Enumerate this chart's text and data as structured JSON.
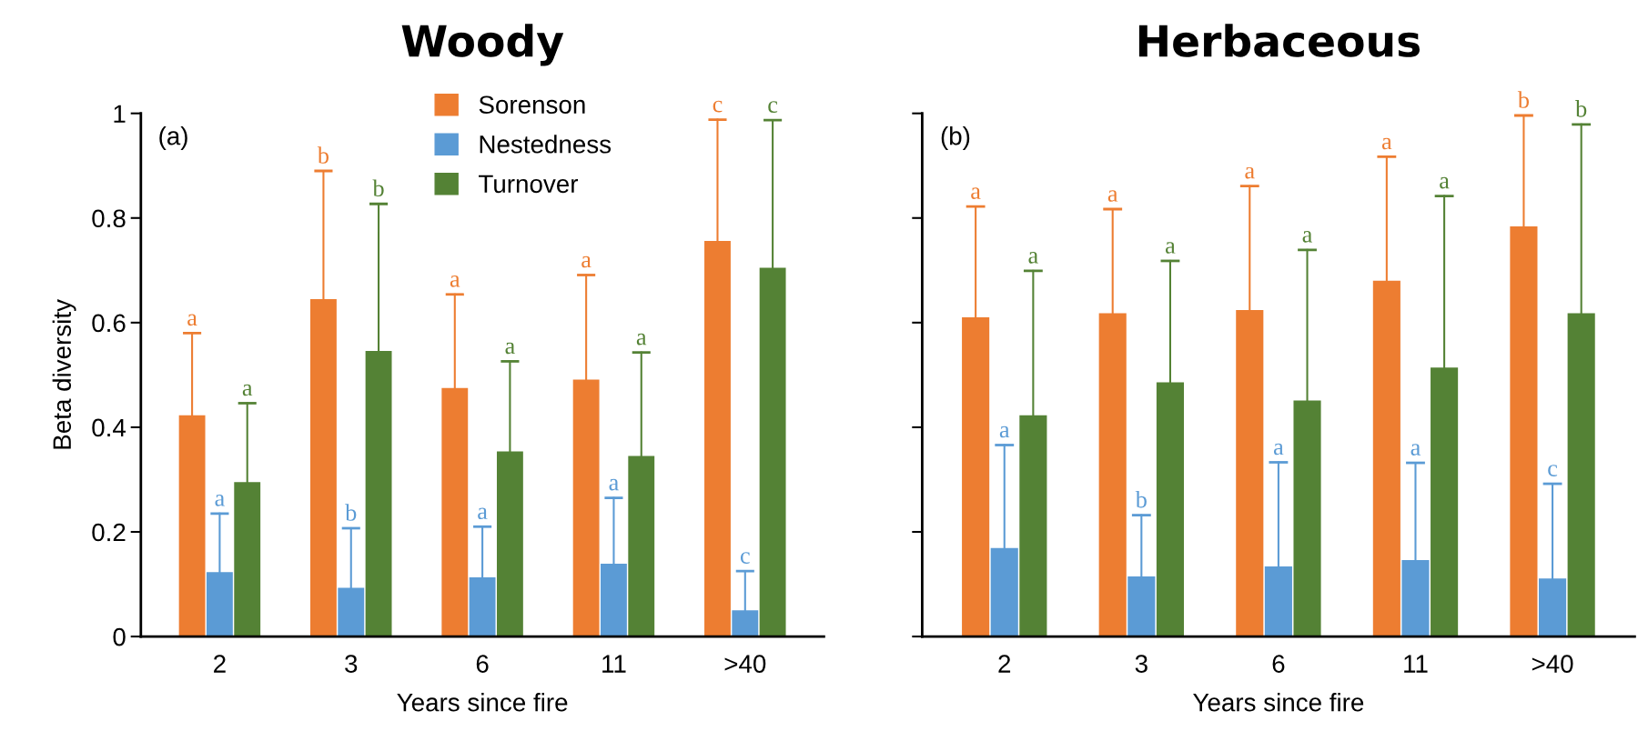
{
  "chart_data": [
    {
      "type": "bar",
      "title": "Woody",
      "xlabel": "Years since fire",
      "ylabel": "Beta diversity",
      "categories": [
        "2",
        "3",
        "6",
        "11",
        ">40"
      ],
      "ylim": [
        0,
        1
      ],
      "yticks": [
        0,
        0.2,
        0.4,
        0.6,
        0.8,
        1
      ],
      "grid": false,
      "legend": "top",
      "annotations": [
        "(a)",
        "a",
        "b",
        "a",
        "a",
        "c",
        "a",
        "b",
        "a",
        "a",
        "c",
        "a",
        "b",
        "a",
        "a",
        "c"
      ],
      "series": [
        {
          "name": "Sorenson",
          "color": "#ed7d31",
          "values": [
            0.423,
            0.645,
            0.475,
            0.491,
            0.756
          ],
          "errors": [
            [
              0.423,
              0.58
            ],
            [
              0.645,
              0.89
            ],
            [
              0.475,
              0.654
            ],
            [
              0.491,
              0.691
            ],
            [
              0.756,
              0.988
            ]
          ]
        },
        {
          "name": "Nestedness",
          "color": "#5b9bd5",
          "values": [
            0.123,
            0.093,
            0.113,
            0.139,
            0.05
          ],
          "errors": [
            [
              0.123,
              0.235
            ],
            [
              0.093,
              0.207
            ],
            [
              0.113,
              0.21
            ],
            [
              0.139,
              0.265
            ],
            [
              0.05,
              0.125
            ]
          ]
        },
        {
          "name": "Turnover",
          "color": "#548235",
          "values": [
            0.295,
            0.546,
            0.354,
            0.345,
            0.705
          ],
          "errors": [
            [
              0.295,
              0.446
            ],
            [
              0.546,
              0.827
            ],
            [
              0.354,
              0.526
            ],
            [
              0.345,
              0.543
            ],
            [
              0.705,
              0.987
            ]
          ]
        }
      ]
    },
    {
      "type": "bar",
      "title": "Herbaceous",
      "xlabel": "Years since fire",
      "categories": [
        "2",
        "3",
        "6",
        "11",
        ">40"
      ],
      "ylim": [
        0,
        1
      ],
      "yticks": [
        0,
        0.2,
        0.4,
        0.6,
        0.8,
        1
      ],
      "grid": false,
      "tick_labels": "x",
      "annotations": [
        "(b)",
        "a",
        "a",
        "a",
        "a",
        "b",
        "a",
        "b",
        "a",
        "a",
        "c",
        "a",
        "a",
        "a",
        "a",
        "b"
      ],
      "series": [
        {
          "color": "#ed7d31",
          "values": [
            0.61,
            0.618,
            0.624,
            0.68,
            0.784
          ],
          "errors": [
            [
              0.61,
              0.822
            ],
            [
              0.618,
              0.817
            ],
            [
              0.624,
              0.861
            ],
            [
              0.68,
              0.917
            ],
            [
              0.784,
              0.996
            ]
          ]
        },
        {
          "color": "#5b9bd5",
          "values": [
            0.169,
            0.115,
            0.134,
            0.146,
            0.111
          ],
          "errors": [
            [
              0.169,
              0.366
            ],
            [
              0.115,
              0.232
            ],
            [
              0.134,
              0.333
            ],
            [
              0.146,
              0.332
            ],
            [
              0.111,
              0.292
            ]
          ]
        },
        {
          "color": "#548235",
          "values": [
            0.423,
            0.486,
            0.451,
            0.514,
            0.618
          ],
          "errors": [
            [
              0.423,
              0.699
            ],
            [
              0.486,
              0.718
            ],
            [
              0.451,
              0.739
            ],
            [
              0.514,
              0.842
            ],
            [
              0.618,
              0.979
            ]
          ]
        }
      ]
    }
  ]
}
